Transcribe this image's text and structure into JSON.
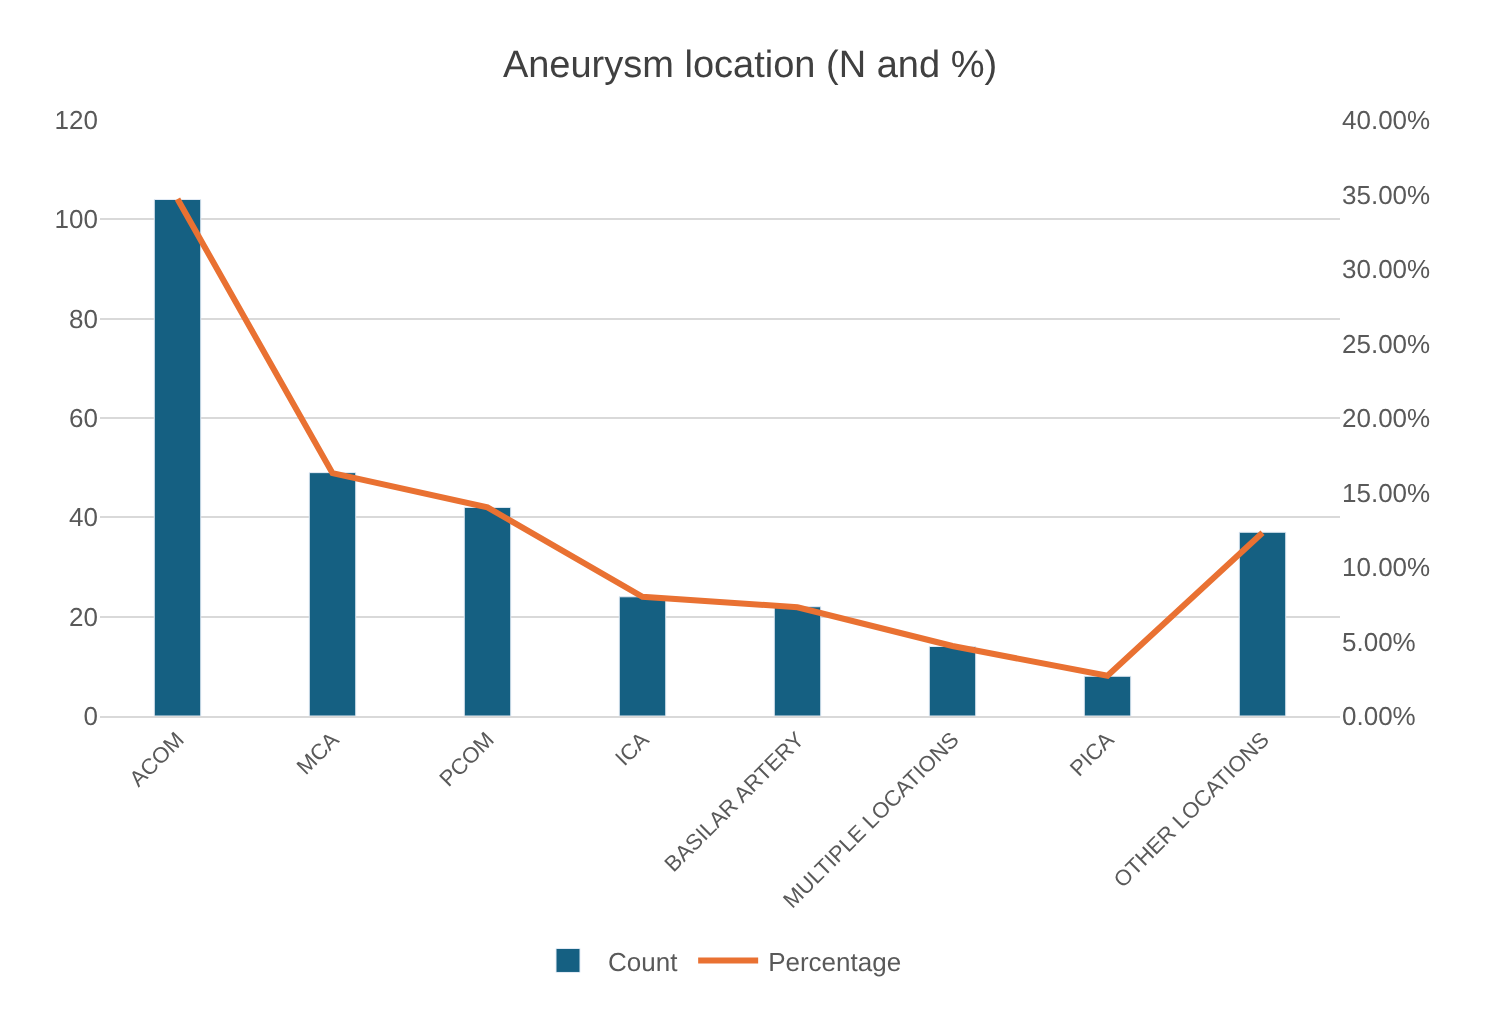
{
  "chart_data": {
    "type": "bar",
    "title": "Aneurysm location (N and %)",
    "categories": [
      "ACOM",
      "MCA",
      "PCOM",
      "ICA",
      "BASILAR ARTERY",
      "MULTIPLE LOCATIONS",
      "PICA",
      "OTHER LOCATIONS"
    ],
    "series": [
      {
        "name": "Count",
        "color": "#156082",
        "values": [
          104,
          49,
          42,
          24,
          22,
          14,
          8,
          37
        ]
      },
      {
        "name": "Percentage",
        "color": "#e97132",
        "type": "line",
        "axis": "y2",
        "values": [
          34.7,
          16.3,
          14.0,
          8.0,
          7.3,
          4.7,
          2.7,
          12.3
        ]
      }
    ],
    "ylim": [
      0,
      120
    ],
    "yticks": [
      0,
      20,
      40,
      60,
      80,
      100,
      120
    ],
    "y2lim": [
      0,
      40
    ],
    "y2ticks": [
      {
        "value": 0,
        "label": "0.00%"
      },
      {
        "value": 5,
        "label": "5.00%"
      },
      {
        "value": 10,
        "label": "10.00%"
      },
      {
        "value": 15,
        "label": "15.00%"
      },
      {
        "value": 20,
        "label": "20.00%"
      },
      {
        "value": 25,
        "label": "25.00%"
      },
      {
        "value": 30,
        "label": "30.00%"
      },
      {
        "value": 35,
        "label": "35.00%"
      },
      {
        "value": 40,
        "label": "40.00%"
      }
    ],
    "grid": "y",
    "legend": "bottom",
    "marker": "none",
    "line_style": "solid"
  }
}
